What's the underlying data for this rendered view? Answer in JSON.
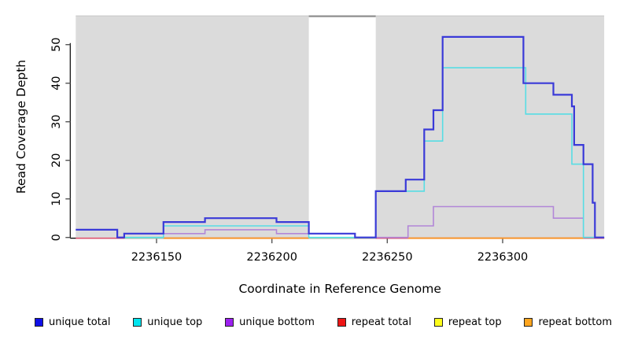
{
  "chart_data": {
    "type": "line",
    "subtype": "step-coverage",
    "title": "",
    "xlabel": "Coordinate in Reference Genome",
    "ylabel": "Read Coverage Depth",
    "xlim": [
      2236115,
      2236344
    ],
    "ylim": [
      0,
      57.4
    ],
    "x_ticks": [
      2236150,
      2236200,
      2236250,
      2236300
    ],
    "y_ticks": [
      0,
      10,
      20,
      30,
      40,
      50
    ],
    "grid": false,
    "plot_bg_color": "#dbdbdb",
    "outer_bg_color": "#ffffff",
    "shaded_regions": [
      {
        "x0": 2236115,
        "x1": 2236216
      },
      {
        "x0": 2236245,
        "x1": 2236344
      }
    ],
    "gap_region": {
      "x0": 2236216,
      "x1": 2236245,
      "top_line_color": "#8f8f8f"
    },
    "legend_position": "bottom",
    "series": [
      {
        "name": "unique total",
        "color": "#3a3ad8",
        "legend_color": "#0f0fe8",
        "width": 2.2,
        "steps": [
          [
            2236115,
            2
          ],
          [
            2236133,
            0
          ],
          [
            2236136,
            1
          ],
          [
            2236153,
            4
          ],
          [
            2236171,
            5
          ],
          [
            2236202,
            4
          ],
          [
            2236216,
            1
          ],
          [
            2236236,
            0
          ],
          [
            2236245,
            12
          ],
          [
            2236258,
            15
          ],
          [
            2236266,
            28
          ],
          [
            2236270,
            33
          ],
          [
            2236274,
            52
          ],
          [
            2236309,
            40
          ],
          [
            2236322,
            37
          ],
          [
            2236330,
            34
          ],
          [
            2236331,
            24
          ],
          [
            2236335,
            19
          ],
          [
            2236339,
            9
          ],
          [
            2236340,
            0
          ]
        ],
        "end": 2236344
      },
      {
        "name": "unique top",
        "color": "#57dde4",
        "legend_color": "#00e4ee",
        "width": 1.6,
        "steps": [
          [
            2236136,
            0
          ],
          [
            2236153,
            3
          ],
          [
            2236216,
            0
          ],
          [
            2236245,
            12
          ],
          [
            2236266,
            25
          ],
          [
            2236274,
            44
          ],
          [
            2236310,
            32
          ],
          [
            2236330,
            19
          ],
          [
            2236335,
            0
          ]
        ],
        "end": 2236344
      },
      {
        "name": "unique bottom",
        "color": "#b286d8",
        "legend_color": "#9c20f0",
        "width": 1.6,
        "steps": [
          [
            2236153,
            1
          ],
          [
            2236171,
            2
          ],
          [
            2236202,
            1
          ],
          [
            2236236,
            0
          ],
          [
            2236259,
            3
          ],
          [
            2236270,
            8
          ],
          [
            2236322,
            5
          ],
          [
            2236335,
            0
          ]
        ],
        "end": 2236344
      },
      {
        "name": "repeat total",
        "color": "#e4516f",
        "legend_color": "#ee1515",
        "width": 1.5,
        "steps": [
          [
            2236115,
            0
          ]
        ],
        "end": 2236344
      },
      {
        "name": "repeat top",
        "color": "#f0e840",
        "legend_color": "#fdfd1a",
        "width": 1.5,
        "steps": [],
        "end": 2236344
      },
      {
        "name": "repeat bottom",
        "color": "#f6952e",
        "legend_color": "#ffa51e",
        "width": 2,
        "zero_segments": [
          [
            2236153,
            2236216
          ],
          [
            2236259,
            2236335
          ]
        ],
        "steps": [],
        "end": 2236344
      }
    ],
    "baseline_overlays": [
      {
        "note": "pale green blended line at zero depth",
        "color": "#93dfb2",
        "width": 1.4,
        "zero_segments": [
          [
            2236136,
            2236153
          ],
          [
            2236216,
            2236245
          ]
        ]
      }
    ]
  }
}
